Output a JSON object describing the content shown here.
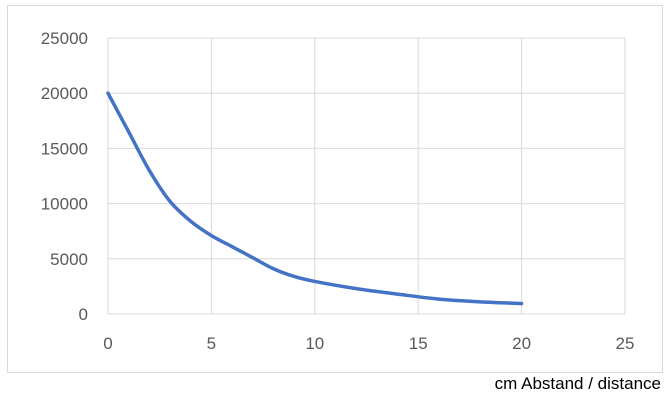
{
  "chart_data": {
    "type": "line",
    "title": "",
    "xlabel": "cm Abstand / distance",
    "ylabel": "",
    "xlim": [
      0,
      25
    ],
    "ylim": [
      0,
      25000
    ],
    "xticks": [
      0,
      5,
      10,
      15,
      20,
      25
    ],
    "yticks": [
      0,
      5000,
      10000,
      15000,
      20000,
      25000
    ],
    "grid": true,
    "legend": "none",
    "series": [
      {
        "color": "#4472c4",
        "x": [
          0,
          1,
          2,
          3,
          4,
          5,
          6,
          7,
          8,
          9,
          10,
          12,
          14,
          16,
          18,
          20
        ],
        "y": [
          20000,
          16500,
          13000,
          10200,
          8400,
          7100,
          6100,
          5100,
          4100,
          3400,
          2950,
          2300,
          1800,
          1350,
          1100,
          950
        ]
      }
    ]
  }
}
